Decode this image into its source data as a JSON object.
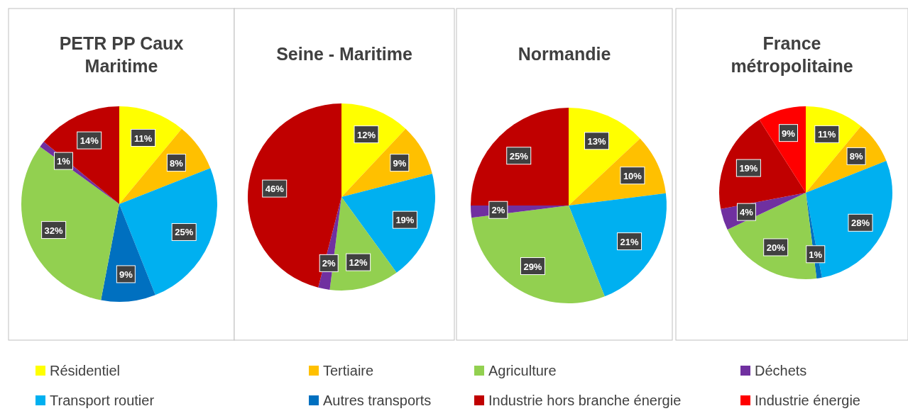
{
  "chart_data": [
    {
      "type": "pie",
      "title": "PETR PP Caux Maritime",
      "categories": [
        "Résidentiel",
        "Tertiaire",
        "Transport routier",
        "Autres transports",
        "Agriculture",
        "Déchets",
        "Industrie hors branche énergie",
        "Industrie énergie"
      ],
      "values": [
        11,
        8,
        25,
        9,
        32,
        1,
        14,
        null
      ],
      "value_labels": [
        "11%",
        "8%",
        "25%",
        "9%",
        "32%",
        "1%",
        "14%",
        null
      ],
      "colors": [
        "#ffff00",
        "#ffc000",
        "#00b0f0",
        "#0070c0",
        "#92d050",
        "#7030a0",
        "#c00000",
        "#ff0000"
      ],
      "legend": "bottom"
    },
    {
      "type": "pie",
      "title": "Seine - Maritime",
      "values": [
        12,
        9,
        19,
        null,
        12,
        2,
        46,
        null
      ],
      "value_labels": [
        "12%",
        "9%",
        "19%",
        null,
        "12%",
        "2%",
        "46%",
        null
      ],
      "colors": [
        "#ffff00",
        "#ffc000",
        "#00b0f0",
        null,
        "#92d050",
        "#7030a0",
        "#c00000",
        null
      ]
    },
    {
      "type": "pie",
      "title": "Normandie",
      "values": [
        13,
        10,
        21,
        null,
        29,
        2,
        25,
        null
      ],
      "value_labels": [
        "13%",
        "10%",
        "21%",
        null,
        "29%",
        "2%",
        "25%",
        null
      ],
      "colors": [
        "#ffff00",
        "#ffc000",
        "#00b0f0",
        null,
        "#92d050",
        "#7030a0",
        "#c00000",
        null
      ]
    },
    {
      "type": "pie",
      "title": "France métropolitaine",
      "values": [
        11,
        8,
        28,
        1,
        20,
        4,
        19,
        9
      ],
      "value_labels": [
        "11%",
        "8%",
        "28%",
        "1%",
        "20%",
        "4%",
        "19%",
        "9%"
      ],
      "colors": [
        "#ffff00",
        "#ffc000",
        "#00b0f0",
        "#0070c0",
        "#92d050",
        "#7030a0",
        "#c00000",
        "#ff0000"
      ]
    }
  ]
}
